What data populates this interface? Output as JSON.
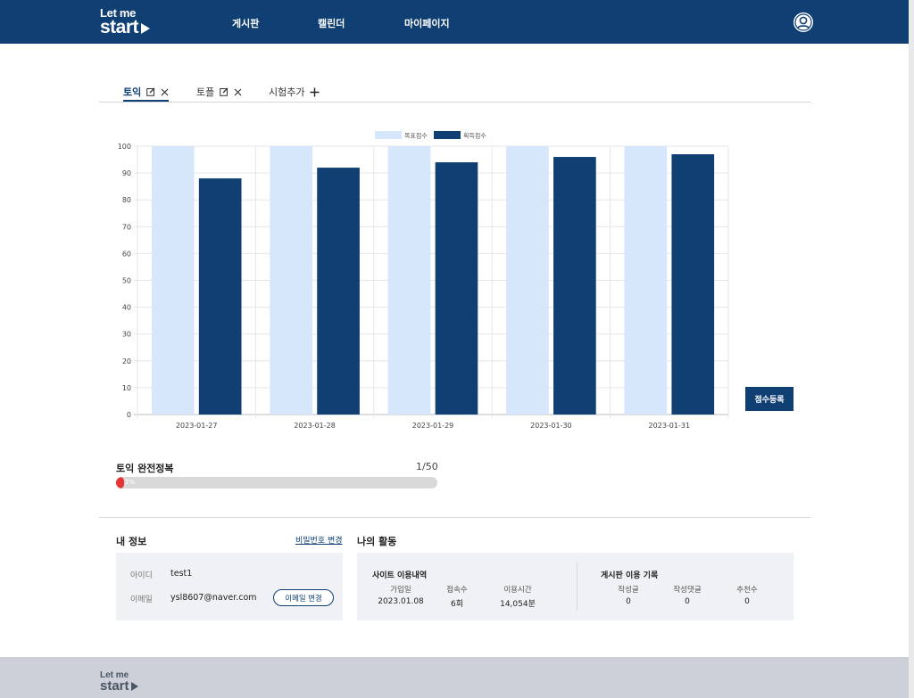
{
  "header": {
    "logo_line1": "Let me",
    "logo_line2": "start",
    "nav": [
      "게시판",
      "캘린더",
      "마이페이지"
    ]
  },
  "tabs": {
    "items": [
      {
        "label": "토익",
        "active": true
      },
      {
        "label": "토플",
        "active": false
      }
    ],
    "add_label": "시험추가"
  },
  "chart_data": {
    "type": "bar",
    "categories": [
      "2023-01-27",
      "2023-01-28",
      "2023-01-29",
      "2023-01-30",
      "2023-01-31"
    ],
    "series": [
      {
        "name": "목표점수",
        "values": [
          100,
          100,
          100,
          100,
          100
        ],
        "color": "#d6e6fb"
      },
      {
        "name": "획득점수",
        "values": [
          88,
          92,
          94,
          96,
          97
        ],
        "color": "#0f3f73"
      }
    ],
    "yticks": [
      0,
      10,
      20,
      30,
      40,
      50,
      60,
      70,
      80,
      90,
      100
    ],
    "ylim": [
      0,
      100
    ],
    "grid": true,
    "legend": "top-center"
  },
  "score_button": "점수등록",
  "goal": {
    "title": "토익 완전정복",
    "count": "1/50",
    "percent_text": "2%",
    "percent": 2
  },
  "my_info": {
    "title": "내 정보",
    "change_password": "비밀번호 변경",
    "id_label": "아이디",
    "id_value": "test1",
    "email_label": "이메일",
    "email_value": "ysl8607@naver.com",
    "change_email": "이메일 변경"
  },
  "activity": {
    "title": "나의 활동",
    "site": {
      "title": "사이트 이용내역",
      "labels": [
        "가입일",
        "접속수",
        "이용시간"
      ],
      "values": [
        "2023.01.08",
        "6회",
        "14,054분"
      ]
    },
    "board": {
      "title": "게시판 이용 기록",
      "labels": [
        "작성글",
        "작성댓글",
        "추천수"
      ],
      "values": [
        "0",
        "0",
        "0"
      ]
    }
  },
  "footer": {
    "logo_line1": "Let me",
    "logo_line2": "start"
  },
  "colors": {
    "primary": "#0f3f73",
    "target_bar": "#d6e6fb",
    "progress": "#e53535"
  }
}
